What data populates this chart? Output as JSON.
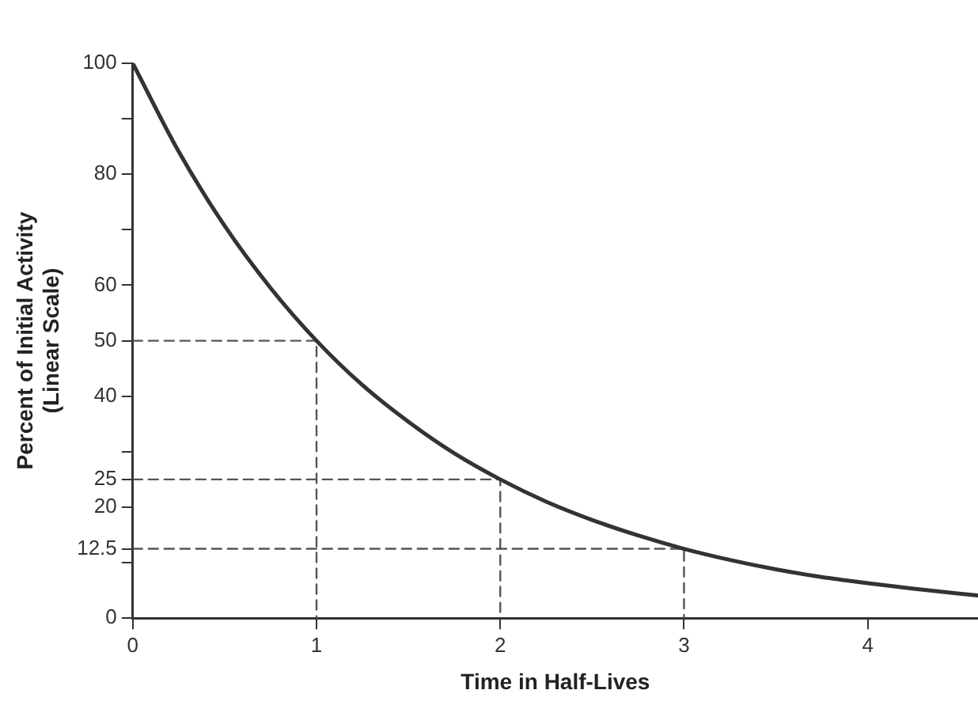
{
  "chart_data": {
    "type": "line",
    "xlabel": "Time in Half-Lives",
    "ylabel": "Percent of Initial Activity\n(Linear Scale)",
    "xlim": [
      0,
      4.6
    ],
    "xticks": [
      0,
      1,
      2,
      3,
      4
    ],
    "ylim": [
      0,
      100
    ],
    "yticks": [
      0,
      {
        "value": 10,
        "label": null
      },
      12.5,
      20,
      25,
      {
        "value": 30,
        "label": null
      },
      40,
      50,
      60,
      {
        "value": 70,
        "label": null
      },
      80,
      {
        "value": 90,
        "label": null
      },
      100
    ],
    "grid": false,
    "legend": false,
    "marker": "none",
    "series": [
      {
        "color": "#333333",
        "line_style": "solid",
        "x": [
          0,
          0.25,
          0.5,
          0.75,
          1,
          1.25,
          1.5,
          1.75,
          2,
          2.25,
          2.5,
          2.75,
          3,
          3.25,
          3.5,
          3.75,
          4,
          4.25,
          4.5,
          4.6
        ],
        "values": [
          100,
          84.1,
          70.7,
          59.5,
          50,
          42,
          35.4,
          29.7,
          25,
          21,
          17.7,
          14.9,
          12.5,
          10.5,
          8.8,
          7.4,
          6.3,
          5.3,
          4.4,
          4.1
        ]
      },
      {
        "color": "#555555",
        "line_style": "dashed",
        "x": [
          0,
          1,
          1
        ],
        "values": [
          50,
          50,
          0
        ]
      },
      {
        "color": "#555555",
        "line_style": "dashed",
        "x": [
          0,
          2,
          2
        ],
        "values": [
          25,
          25,
          0
        ]
      },
      {
        "color": "#555555",
        "line_style": "dashed",
        "x": [
          0,
          3,
          3
        ],
        "values": [
          12.5,
          12.5,
          0
        ]
      }
    ]
  }
}
